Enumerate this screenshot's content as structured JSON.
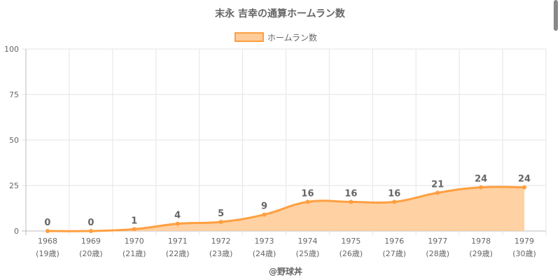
{
  "chart_data": {
    "type": "line",
    "title": "末永 吉幸の通算ホームラン数",
    "legend": {
      "label": "ホームラン数",
      "position": "top"
    },
    "categories": [
      "1968",
      "1969",
      "1970",
      "1971",
      "1972",
      "1973",
      "1974",
      "1975",
      "1976",
      "1977",
      "1978",
      "1979"
    ],
    "sublabels": [
      "(19歳)",
      "(20歳)",
      "(21歳)",
      "(22歳)",
      "(23歳)",
      "(24歳)",
      "(25歳)",
      "(26歳)",
      "(27歳)",
      "(28歳)",
      "(29歳)",
      "(30歳)"
    ],
    "values": [
      0,
      0,
      1,
      4,
      5,
      9,
      16,
      16,
      16,
      21,
      24,
      24
    ],
    "ylim": [
      0,
      100
    ],
    "yticks": [
      0,
      25,
      50,
      75,
      100
    ],
    "grid": true,
    "fill": true,
    "colors": {
      "line": "#ff9f40",
      "fill": "#ffcc99"
    },
    "credit": "@野球丼"
  }
}
